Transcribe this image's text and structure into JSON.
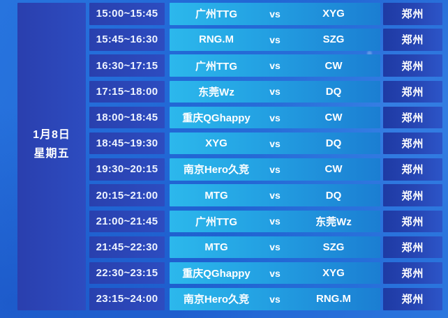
{
  "colors": {
    "background_blue": "#2063d2",
    "panel_indigo": "#2b45b6",
    "match_gradient_start": "#2cb8ec",
    "match_gradient_end": "#1b7ed2",
    "location_navy": "#1e3aa4",
    "text_white": "#ffffff"
  },
  "date_panel": {
    "date": "1月8日",
    "weekday": "星期五"
  },
  "schedule": {
    "rows": [
      {
        "time": "15:00~15:45",
        "team_a": "广州TTG",
        "vs_label": "vs",
        "team_b": "XYG",
        "location": "郑州"
      },
      {
        "time": "15:45~16:30",
        "team_a": "RNG.M",
        "vs_label": "vs",
        "team_b": "SZG",
        "location": "郑州"
      },
      {
        "time": "16:30~17:15",
        "team_a": "广州TTG",
        "vs_label": "vs",
        "team_b": "CW",
        "location": "郑州"
      },
      {
        "time": "17:15~18:00",
        "team_a": "东莞Wz",
        "vs_label": "vs",
        "team_b": "DQ",
        "location": "郑州"
      },
      {
        "time": "18:00~18:45",
        "team_a": "重庆QGhappy",
        "vs_label": "vs",
        "team_b": "CW",
        "location": "郑州"
      },
      {
        "time": "18:45~19:30",
        "team_a": "XYG",
        "vs_label": "vs",
        "team_b": "DQ",
        "location": "郑州"
      },
      {
        "time": "19:30~20:15",
        "team_a": "南京Hero久竞",
        "vs_label": "vs",
        "team_b": "CW",
        "location": "郑州"
      },
      {
        "time": "20:15~21:00",
        "team_a": "MTG",
        "vs_label": "vs",
        "team_b": "DQ",
        "location": "郑州"
      },
      {
        "time": "21:00~21:45",
        "team_a": "广州TTG",
        "vs_label": "vs",
        "team_b": "东莞Wz",
        "location": "郑州"
      },
      {
        "time": "21:45~22:30",
        "team_a": "MTG",
        "vs_label": "vs",
        "team_b": "SZG",
        "location": "郑州"
      },
      {
        "time": "22:30~23:15",
        "team_a": "重庆QGhappy",
        "vs_label": "vs",
        "team_b": "XYG",
        "location": "郑州"
      },
      {
        "time": "23:15~24:00",
        "team_a": "南京Hero久竞",
        "vs_label": "vs",
        "team_b": "RNG.M",
        "location": "郑州"
      }
    ]
  }
}
